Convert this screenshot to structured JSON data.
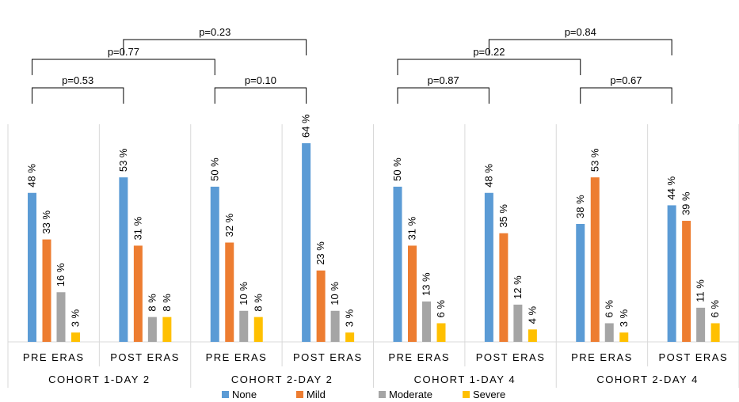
{
  "chart_data": {
    "type": "bar",
    "unit_suffix": " %",
    "series_colors": [
      "#5b9bd5",
      "#ed7d31",
      "#a5a5a5",
      "#ffc000"
    ],
    "legend_position": "bottom",
    "series": [
      {
        "name": "None"
      },
      {
        "name": "Mild"
      },
      {
        "name": "Moderate"
      },
      {
        "name": "Severe"
      }
    ],
    "cohorts": [
      {
        "label": "COHORT 1-DAY 2",
        "groups": [
          {
            "label": "PRE ERAS",
            "values": [
              48,
              33,
              16,
              3
            ]
          },
          {
            "label": "POST ERAS",
            "values": [
              53,
              31,
              8,
              8
            ]
          }
        ]
      },
      {
        "label": "COHORT 2-DAY 2",
        "groups": [
          {
            "label": "PRE ERAS",
            "values": [
              50,
              32,
              10,
              8
            ]
          },
          {
            "label": "POST ERAS",
            "values": [
              64,
              23,
              10,
              3
            ]
          }
        ]
      },
      {
        "label": "COHORT 1-DAY 4",
        "groups": [
          {
            "label": "PRE ERAS",
            "values": [
              50,
              31,
              13,
              6
            ]
          },
          {
            "label": "POST ERAS",
            "values": [
              48,
              35,
              12,
              4
            ]
          }
        ]
      },
      {
        "label": "COHORT 2-DAY 4",
        "groups": [
          {
            "label": "PRE ERAS",
            "values": [
              38,
              53,
              6,
              3
            ]
          },
          {
            "label": "POST ERAS",
            "values": [
              44,
              39,
              11,
              6
            ]
          }
        ]
      }
    ],
    "comparisons": [
      {
        "from_group": 0,
        "to_group": 1,
        "label": "p=0.53"
      },
      {
        "from_group": 2,
        "to_group": 3,
        "label": "p=0.10"
      },
      {
        "from_group": 0,
        "to_group": 2,
        "label": "p=0.77"
      },
      {
        "from_group": 1,
        "to_group": 3,
        "label": "p=0.23"
      },
      {
        "from_group": 4,
        "to_group": 5,
        "label": "p=0.87"
      },
      {
        "from_group": 6,
        "to_group": 7,
        "label": "p=0.67"
      },
      {
        "from_group": 4,
        "to_group": 6,
        "label": "p=0.22"
      },
      {
        "from_group": 5,
        "to_group": 7,
        "label": "p=0.84"
      }
    ],
    "ylim": [
      0,
      70
    ]
  }
}
